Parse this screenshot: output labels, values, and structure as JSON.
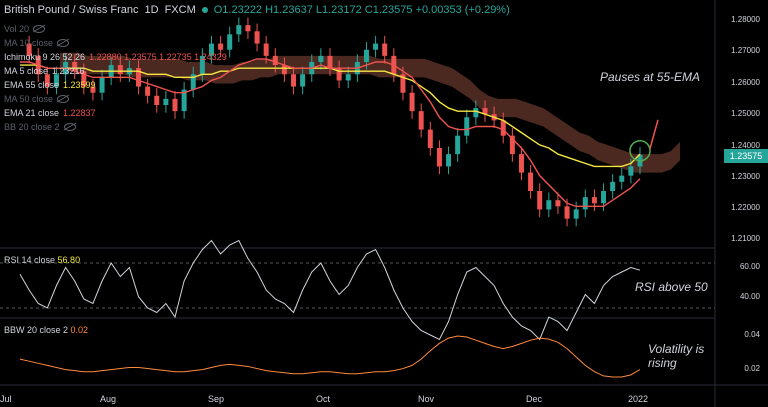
{
  "header": {
    "symbol": "British Pound / Swiss Franc",
    "interval": "1D",
    "exchange": "FXCM",
    "ohlc": "O1.23222 H1.23637 L1.23172 C1.23575 +0.00353 (+0.29%)"
  },
  "legend": {
    "vol": "Vol 20",
    "ma": "MA 10 close",
    "ichimoku_label": "Ichimoku 9 26 52 26",
    "ichimoku_values": "1.22880 1.23575 1.22735 1.24329",
    "ma5_label": "MA 5 close",
    "ma5_value": "1.23216",
    "ema55_label": "EMA 55 close",
    "ema55_value": "1.23599",
    "ma50_label": "MA 50 close",
    "ema21_label": "EMA 21 close",
    "ema21_value": "1.22837",
    "bb_label": "BB 20 close 2"
  },
  "price_axis": [
    "1.28000",
    "1.27000",
    "1.26000",
    "1.25000",
    "1.24000",
    "1.23000",
    "1.22000",
    "1.21000"
  ],
  "last_price": "1.23575",
  "annotations": {
    "ema": "Pauses at 55-EMA",
    "rsi": "RSI above 50",
    "vol1": "Volatility is",
    "vol2": "rising"
  },
  "rsi": {
    "label": "RSI 14 close",
    "value": "56.80",
    "axis": [
      "60.00",
      "40.00"
    ]
  },
  "bbw": {
    "label": "BBW 20 close 2",
    "value": "0.02",
    "axis": [
      "0.04",
      "0.02"
    ]
  },
  "time_axis": [
    "Jul",
    "Aug",
    "Sep",
    "Oct",
    "Nov",
    "Dec",
    "2022"
  ],
  "colors": {
    "up": "#26a69a",
    "down": "#ef5350",
    "ema55": "#f5e642",
    "ema21": "#ef5350",
    "rsi": "#d1d4dc",
    "bbw": "#ff8a3d"
  },
  "chart_data": {
    "type": "candlestick",
    "closes": [
      1.272,
      1.268,
      1.262,
      1.258,
      1.262,
      1.266,
      1.263,
      1.258,
      1.256,
      1.261,
      1.265,
      1.262,
      1.264,
      1.258,
      1.255,
      1.252,
      1.254,
      1.25,
      1.257,
      1.262,
      1.268,
      1.272,
      1.27,
      1.275,
      1.278,
      1.276,
      1.272,
      1.268,
      1.265,
      1.262,
      1.258,
      1.262,
      1.266,
      1.268,
      1.264,
      1.26,
      1.262,
      1.266,
      1.27,
      1.272,
      1.268,
      1.262,
      1.256,
      1.25,
      1.244,
      1.238,
      1.232,
      1.236,
      1.242,
      1.248,
      1.251,
      1.249,
      1.247,
      1.242,
      1.236,
      1.23,
      1.224,
      1.218,
      1.221,
      1.219,
      1.215,
      1.218,
      1.222,
      1.22,
      1.224,
      1.227,
      1.229,
      1.232,
      1.2358
    ],
    "ema55": [
      1.265,
      1.265,
      1.265,
      1.264,
      1.264,
      1.264,
      1.264,
      1.264,
      1.263,
      1.263,
      1.263,
      1.263,
      1.263,
      1.263,
      1.262,
      1.262,
      1.262,
      1.261,
      1.261,
      1.261,
      1.262,
      1.262,
      1.263,
      1.263,
      1.264,
      1.264,
      1.264,
      1.264,
      1.264,
      1.264,
      1.264,
      1.264,
      1.264,
      1.264,
      1.264,
      1.263,
      1.263,
      1.263,
      1.263,
      1.263,
      1.263,
      1.262,
      1.261,
      1.26,
      1.258,
      1.256,
      1.253,
      1.251,
      1.25,
      1.25,
      1.25,
      1.249,
      1.248,
      1.247,
      1.245,
      1.243,
      1.241,
      1.239,
      1.238,
      1.236,
      1.235,
      1.234,
      1.233,
      1.232,
      1.232,
      1.232,
      1.232,
      1.233,
      1.236
    ],
    "ema21": [
      1.266,
      1.266,
      1.265,
      1.264,
      1.264,
      1.264,
      1.263,
      1.262,
      1.261,
      1.261,
      1.261,
      1.261,
      1.261,
      1.26,
      1.259,
      1.258,
      1.257,
      1.256,
      1.256,
      1.257,
      1.258,
      1.26,
      1.261,
      1.263,
      1.265,
      1.266,
      1.267,
      1.267,
      1.266,
      1.265,
      1.264,
      1.264,
      1.264,
      1.265,
      1.264,
      1.264,
      1.264,
      1.264,
      1.265,
      1.266,
      1.266,
      1.265,
      1.263,
      1.261,
      1.257,
      1.253,
      1.248,
      1.245,
      1.244,
      1.244,
      1.245,
      1.245,
      1.245,
      1.244,
      1.241,
      1.238,
      1.234,
      1.229,
      1.226,
      1.223,
      1.22,
      1.219,
      1.219,
      1.219,
      1.219,
      1.221,
      1.223,
      1.225,
      1.228
    ],
    "rsi": [
      55,
      48,
      42,
      40,
      50,
      58,
      52,
      44,
      42,
      52,
      60,
      54,
      58,
      45,
      40,
      38,
      42,
      36,
      52,
      60,
      66,
      70,
      64,
      68,
      70,
      62,
      56,
      48,
      44,
      42,
      38,
      48,
      56,
      60,
      52,
      46,
      50,
      58,
      64,
      66,
      58,
      48,
      40,
      34,
      30,
      28,
      26,
      34,
      46,
      56,
      58,
      54,
      50,
      42,
      36,
      32,
      30,
      26,
      36,
      34,
      30,
      38,
      46,
      42,
      50,
      54,
      56,
      58,
      56.8
    ],
    "bbw": [
      0.03,
      0.028,
      0.026,
      0.024,
      0.022,
      0.02,
      0.019,
      0.018,
      0.018,
      0.019,
      0.02,
      0.021,
      0.022,
      0.022,
      0.021,
      0.02,
      0.019,
      0.018,
      0.018,
      0.019,
      0.02,
      0.022,
      0.024,
      0.025,
      0.024,
      0.023,
      0.021,
      0.019,
      0.018,
      0.017,
      0.016,
      0.016,
      0.017,
      0.018,
      0.018,
      0.017,
      0.016,
      0.016,
      0.017,
      0.018,
      0.018,
      0.019,
      0.021,
      0.024,
      0.03,
      0.038,
      0.045,
      0.05,
      0.052,
      0.051,
      0.048,
      0.045,
      0.042,
      0.04,
      0.042,
      0.045,
      0.048,
      0.05,
      0.049,
      0.046,
      0.04,
      0.032,
      0.024,
      0.018,
      0.014,
      0.013,
      0.013,
      0.015,
      0.02
    ]
  }
}
